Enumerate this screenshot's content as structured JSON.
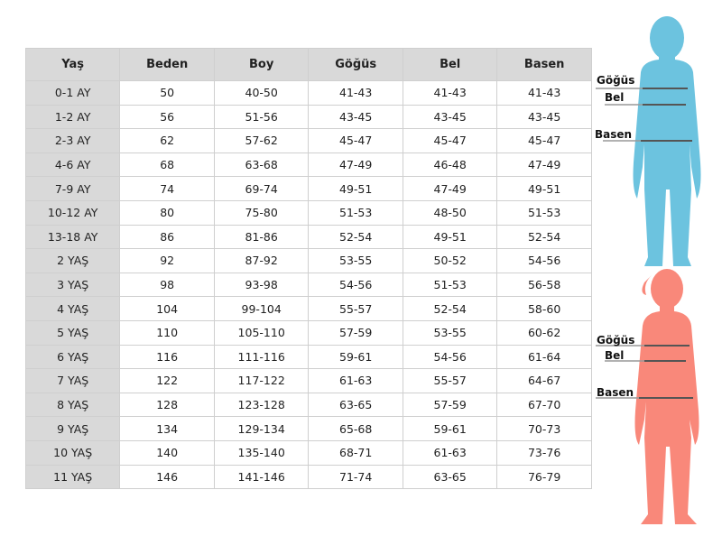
{
  "table": {
    "headers": [
      "Yaş",
      "Beden",
      "Boy",
      "Göğüs",
      "Bel",
      "Basen"
    ],
    "rows": [
      [
        "0-1 AY",
        "50",
        "40-50",
        "41-43",
        "41-43",
        "41-43"
      ],
      [
        "1-2 AY",
        "56",
        "51-56",
        "43-45",
        "43-45",
        "43-45"
      ],
      [
        "2-3 AY",
        "62",
        "57-62",
        "45-47",
        "45-47",
        "45-47"
      ],
      [
        "4-6 AY",
        "68",
        "63-68",
        "47-49",
        "46-48",
        "47-49"
      ],
      [
        "7-9 AY",
        "74",
        "69-74",
        "49-51",
        "47-49",
        "49-51"
      ],
      [
        "10-12 AY",
        "80",
        "75-80",
        "51-53",
        "48-50",
        "51-53"
      ],
      [
        "13-18 AY",
        "86",
        "81-86",
        "52-54",
        "49-51",
        "52-54"
      ],
      [
        "2 YAŞ",
        "92",
        "87-92",
        "53-55",
        "50-52",
        "54-56"
      ],
      [
        "3 YAŞ",
        "98",
        "93-98",
        "54-56",
        "51-53",
        "56-58"
      ],
      [
        "4 YAŞ",
        "104",
        "99-104",
        "55-57",
        "52-54",
        "58-60"
      ],
      [
        "5 YAŞ",
        "110",
        "105-110",
        "57-59",
        "53-55",
        "60-62"
      ],
      [
        "6 YAŞ",
        "116",
        "111-116",
        "59-61",
        "54-56",
        "61-64"
      ],
      [
        "7 YAŞ",
        "122",
        "117-122",
        "61-63",
        "55-57",
        "64-67"
      ],
      [
        "8 YAŞ",
        "128",
        "123-128",
        "63-65",
        "57-59",
        "67-70"
      ],
      [
        "9 YAŞ",
        "134",
        "129-134",
        "65-68",
        "59-61",
        "70-73"
      ],
      [
        "10 YAŞ",
        "140",
        "135-140",
        "68-71",
        "61-63",
        "73-76"
      ],
      [
        "11 YAŞ",
        "146",
        "141-146",
        "71-74",
        "63-65",
        "76-79"
      ]
    ]
  },
  "figures": {
    "boy": {
      "color": "#6cc3df",
      "labels": {
        "chest": "Göğüs",
        "waist": "Bel",
        "hip": "Basen"
      }
    },
    "girl": {
      "color": "#f9887a",
      "labels": {
        "chest": "Göğüs",
        "waist": "Bel",
        "hip": "Basen"
      }
    }
  }
}
